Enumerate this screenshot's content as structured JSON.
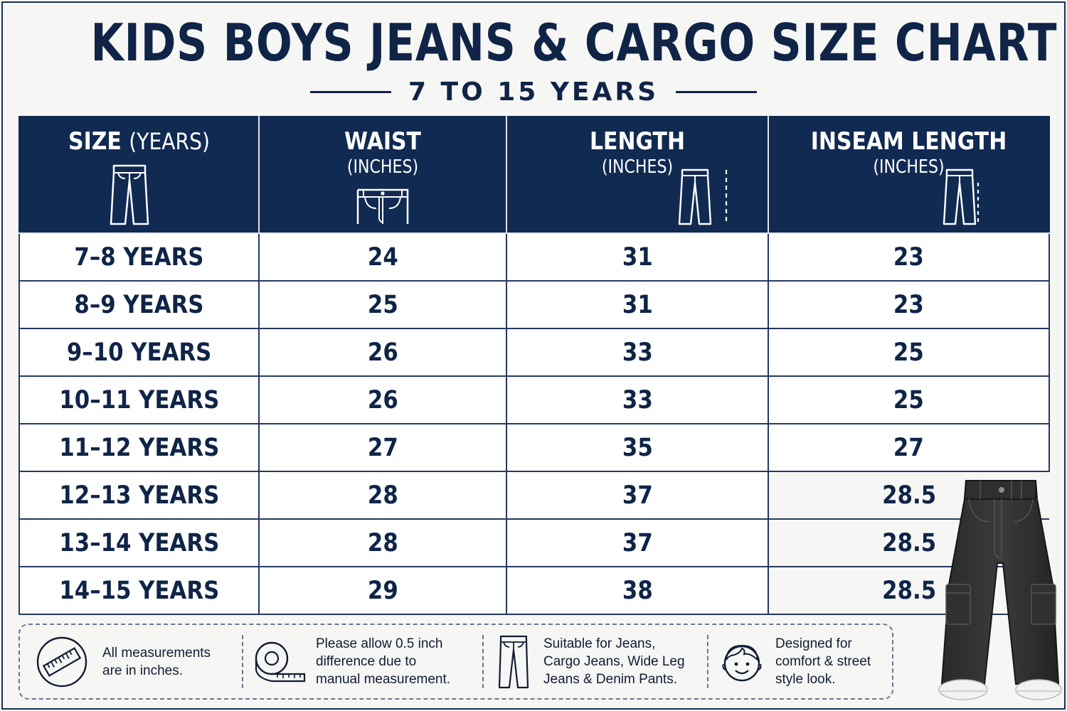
{
  "title": "KIDS BOYS JEANS & CARGO SIZE CHART",
  "subtitle": "7 TO 15 YEARS",
  "columns": [
    {
      "main": "SIZE",
      "suffix": "(YEARS)",
      "unit": "",
      "icon": "jeans-outline-icon"
    },
    {
      "main": "WAIST",
      "suffix": "",
      "unit": "(INCHES)",
      "icon": "waistband-icon"
    },
    {
      "main": "LENGTH",
      "suffix": "",
      "unit": "(INCHES)",
      "icon": "jeans-length-icon"
    },
    {
      "main": "INSEAM LENGTH",
      "suffix": "",
      "unit": "(INCHES)",
      "icon": "jeans-inseam-icon"
    }
  ],
  "rows": [
    [
      "7–8 YEARS",
      "24",
      "31",
      "23"
    ],
    [
      "8–9 YEARS",
      "25",
      "31",
      "23"
    ],
    [
      "9–10 YEARS",
      "26",
      "33",
      "25"
    ],
    [
      "10–11 YEARS",
      "26",
      "33",
      "25"
    ],
    [
      "11–12 YEARS",
      "27",
      "35",
      "27"
    ],
    [
      "12–13 YEARS",
      "28",
      "37",
      "28.5"
    ],
    [
      "13–14 YEARS",
      "28",
      "37",
      "28.5"
    ],
    [
      "14–15 YEARS",
      "29",
      "38",
      "28.5"
    ]
  ],
  "notes": [
    {
      "icon": "ruler-icon",
      "lines": [
        "All measurements",
        "are in inches."
      ]
    },
    {
      "icon": "measuring-tape-icon",
      "lines": [
        "Please allow 0.5 inch",
        "difference due to",
        "manual measurement."
      ]
    },
    {
      "icon": "pants-icon",
      "lines": [
        "Suitable for Jeans,",
        "Cargo Jeans, Wide Leg",
        "Jeans & Denim Pants."
      ]
    },
    {
      "icon": "smiling-boy-icon",
      "lines": [
        "Designed for",
        "comfort & street",
        "style look."
      ]
    }
  ],
  "product_image": "black-cargo-jeans-photo",
  "colors": {
    "navy": "#102a52",
    "text": "#0f2447",
    "background": "#f6f6f4"
  }
}
